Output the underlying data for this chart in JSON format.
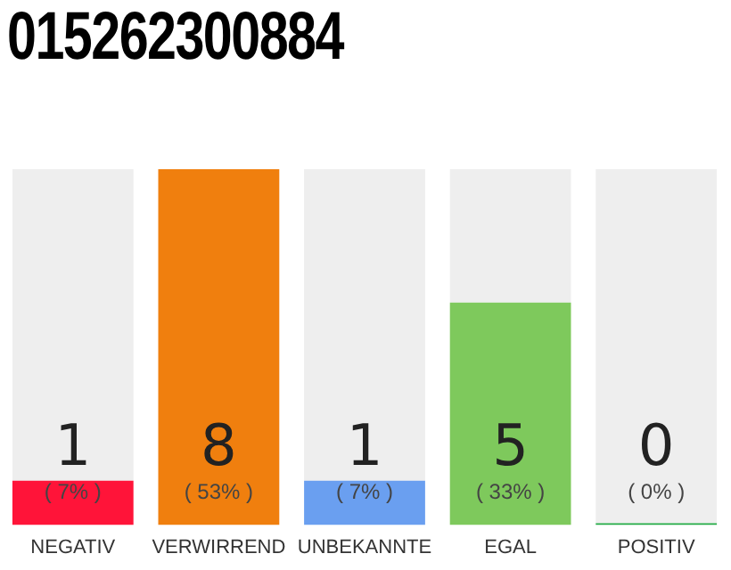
{
  "chart_data": {
    "type": "bar",
    "title": "015262300884",
    "categories": [
      "NEGATIV",
      "VERWIRREND",
      "UNBEKANNTE",
      "EGAL",
      "POSITIV"
    ],
    "stacked": true,
    "series": [
      {
        "colors": [
          "#ff1439",
          "#f07f0e",
          "#6a9ff0",
          "#7ec95c",
          "#22aa44"
        ],
        "values": [
          1,
          8,
          1,
          5,
          0
        ],
        "value_labels": [
          "1",
          "8",
          "1",
          "5",
          "0"
        ]
      },
      {
        "color": "#eeeeee",
        "values": [
          7,
          0,
          7,
          3,
          8
        ]
      }
    ],
    "annotations": [
      "( 7% )",
      "( 53% )",
      "( 7% )",
      "( 33% )",
      "( 0% )"
    ],
    "ylim": [
      0,
      8
    ],
    "tick_labels": "x",
    "grid": false,
    "legend": false
  }
}
